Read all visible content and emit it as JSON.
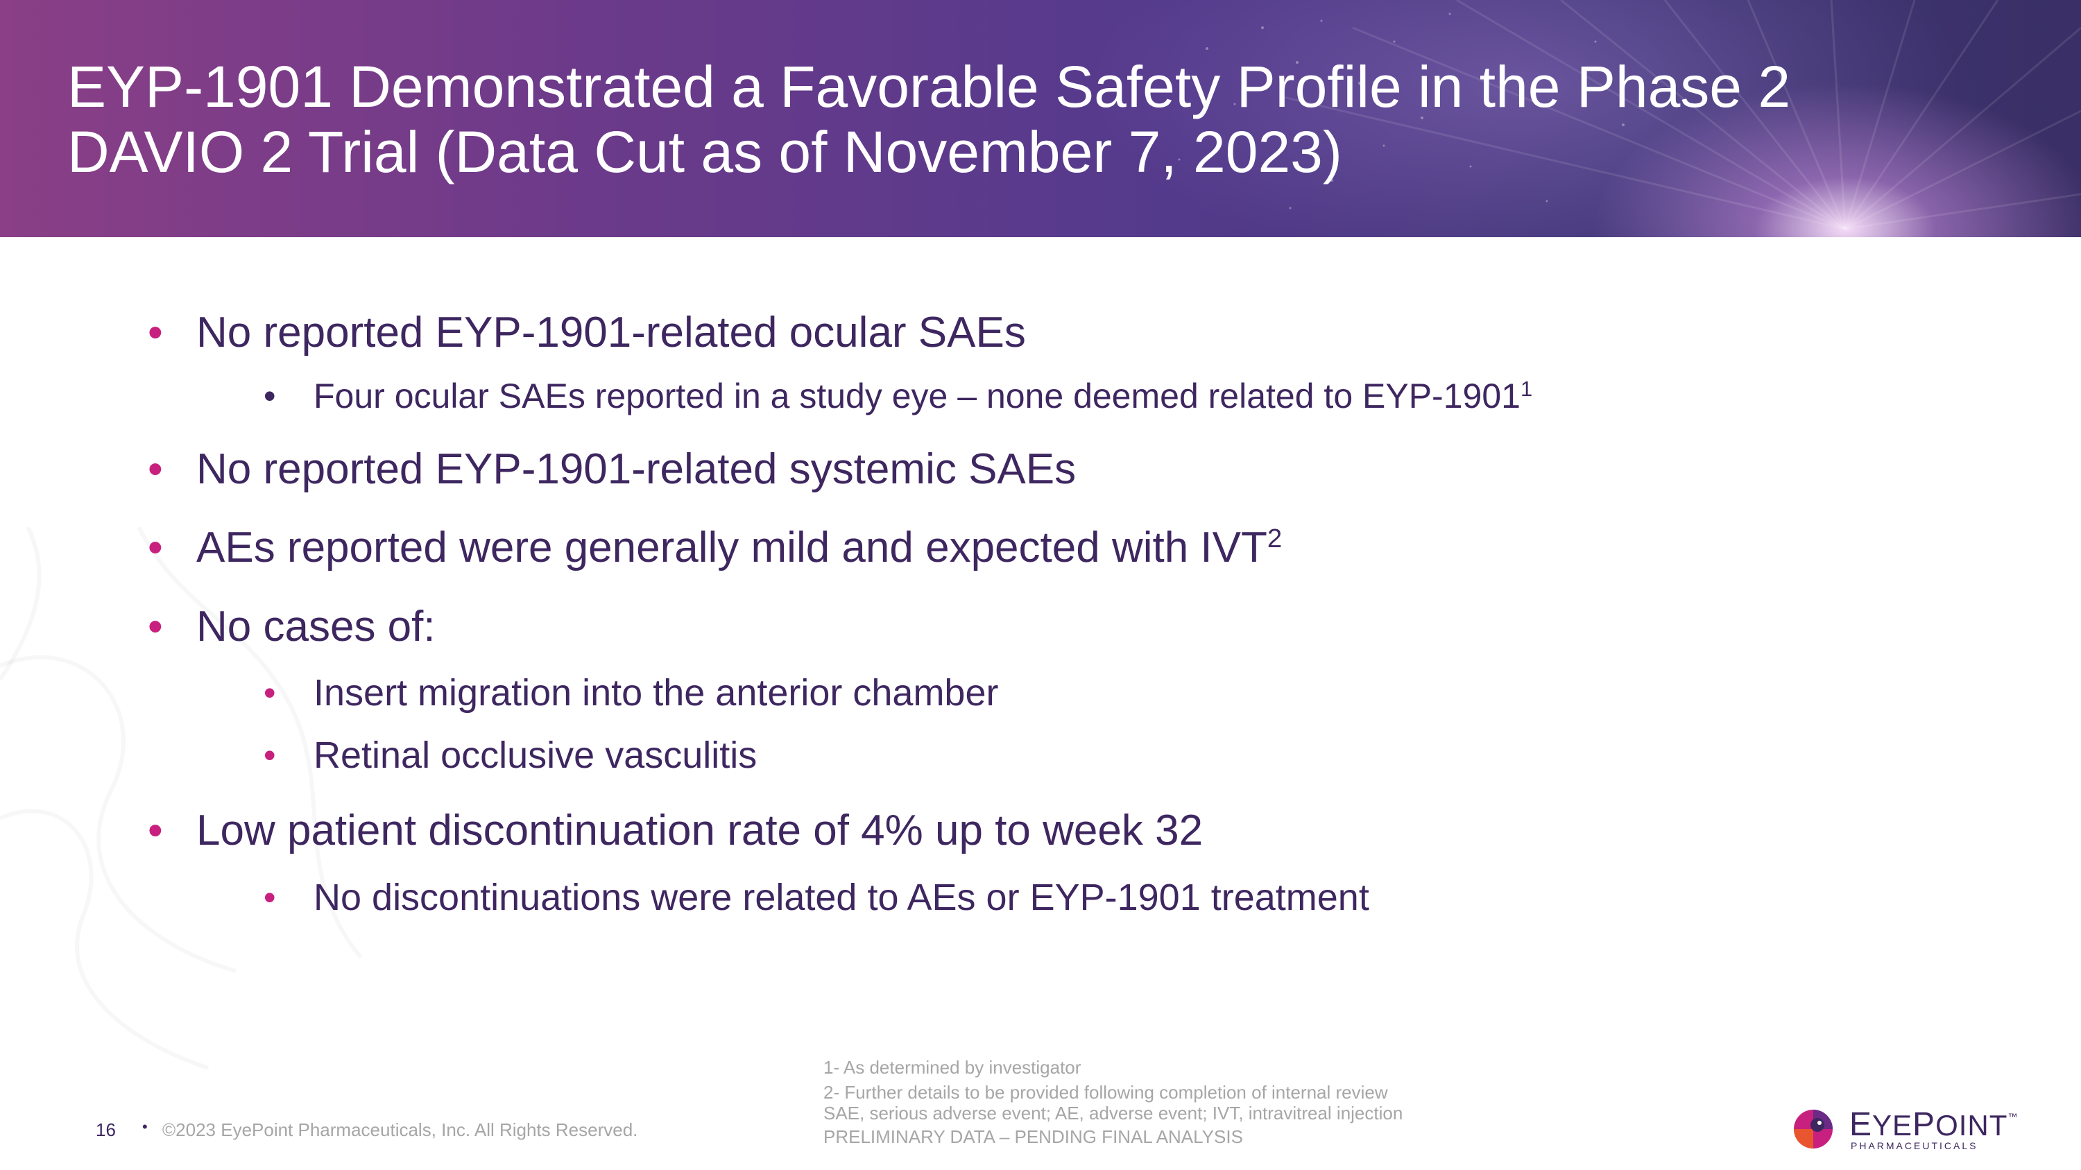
{
  "slide": {
    "title_line1": "EYP-1901 Demonstrated a Favorable Safety Profile in the Phase 2",
    "title_line2": "DAVIO 2 Trial (Data Cut as of November 7, 2023)"
  },
  "bullets": {
    "b1": "No reported EYP-1901-related ocular SAEs",
    "b1_sub1": "Four ocular SAEs reported in a study eye – none deemed related to EYP-1901",
    "b1_sub1_sup": "1",
    "b2": "No reported EYP-1901-related systemic SAEs",
    "b3": "AEs reported were generally mild and expected with IVT",
    "b3_sup": "2",
    "b4": "No cases of:",
    "b4_sub1": "Insert migration into the anterior chamber",
    "b4_sub2": "Retinal occlusive vasculitis",
    "b5": "Low patient discontinuation rate of 4% up to week 32",
    "b5_sub1": "No discontinuations were related to AEs or EYP-1901 treatment"
  },
  "footnotes": {
    "fn1": "1- As determined by investigator",
    "fn2": "2- Further details to be provided following completion of internal review",
    "abbrev": "SAE, serious adverse event; AE, adverse event; IVT, intravitreal injection",
    "prelim": "PRELIMINARY DATA – PENDING FINAL ANALYSIS"
  },
  "footer": {
    "page_number": "16",
    "copyright": "©2023 EyePoint Pharmaceuticals, Inc. All Rights Reserved."
  },
  "logo": {
    "word_first": "E",
    "word_mid1": "YE",
    "word_p": "P",
    "word_mid2": "OINT",
    "tm": "™",
    "subtitle": "PHARMACEUTICALS"
  },
  "colors": {
    "header_start": "#8a3f86",
    "header_end": "#3a2f66",
    "text_primary": "#3e2760",
    "bullet_accent": "#c8207f",
    "footnote_gray": "#a6a6a6"
  }
}
